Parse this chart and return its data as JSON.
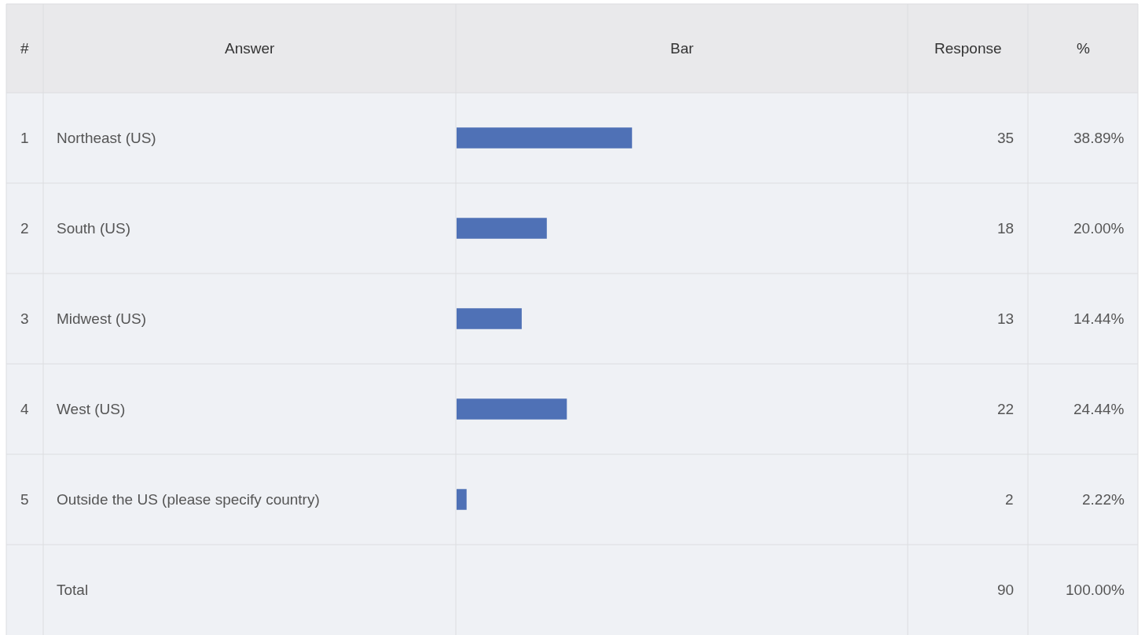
{
  "chart_data": {
    "type": "bar",
    "orientation": "horizontal",
    "categories": [
      "Northeast (US)",
      "South (US)",
      "Midwest (US)",
      "West (US)",
      "Outside the US (please specify country)"
    ],
    "values": [
      38.89,
      20.0,
      14.44,
      24.44,
      2.22
    ],
    "color": "#4f71b6",
    "tick_labels": false,
    "value_labels": [
      "38.89%",
      "20.00%",
      "14.44%",
      "24.44%",
      "2.22%"
    ],
    "annotations": [
      "#",
      "Answer",
      "Bar",
      "Response",
      "%",
      "1",
      "2",
      "3",
      "4",
      "5",
      "35",
      "18",
      "13",
      "22",
      "2",
      "Total",
      "90",
      "100.00%"
    ]
  }
}
